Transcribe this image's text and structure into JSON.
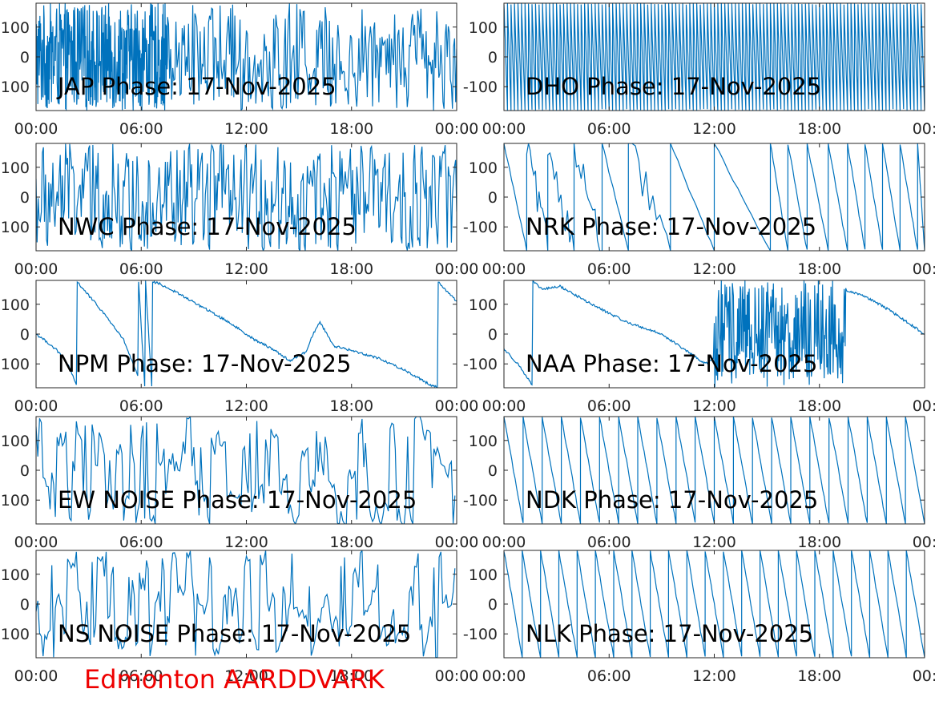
{
  "footer": {
    "text": "Edmonton AARDDVARK",
    "color": "#ee0000"
  },
  "style": {
    "line_color": "#0072bd",
    "axis_color": "#262626"
  },
  "chart_data": [
    {
      "type": "line",
      "title": "JAP Phase: 17-Nov-2025",
      "ylim": [
        -180,
        180
      ],
      "y_ticks": [
        100,
        0,
        -100
      ],
      "y_tick_labels": [
        "100",
        "0",
        "100"
      ],
      "x_tick_labels": [
        "00:00",
        "06:00",
        "12:00",
        "18:00",
        "00:00"
      ],
      "xlim_hours": [
        0,
        24
      ],
      "series": [
        {
          "pattern": "noise",
          "segments": [
            {
              "from_hour": 0,
              "to_hour": 7.5,
              "density": "saturated"
            },
            {
              "from_hour": 7.5,
              "to_hour": 24,
              "density": "dense"
            }
          ]
        }
      ]
    },
    {
      "type": "line",
      "title": "DHO Phase: 17-Nov-2025",
      "ylim": [
        -180,
        180
      ],
      "y_ticks": [
        100,
        0,
        -100
      ],
      "y_tick_labels": [
        "100",
        "0",
        "-100"
      ],
      "x_tick_labels": [
        "00:00",
        "06:00",
        "12:00",
        "18:00",
        "00:"
      ],
      "xlim_hours": [
        0,
        24
      ],
      "series": [
        {
          "pattern": "wrap",
          "wraps_per_day": 120,
          "direction": "down"
        }
      ]
    },
    {
      "type": "line",
      "title": "NWC Phase: 17-Nov-2025",
      "ylim": [
        -180,
        180
      ],
      "y_ticks": [
        100,
        0,
        -100
      ],
      "y_tick_labels": [
        "100",
        "0",
        "100"
      ],
      "x_tick_labels": [
        "00:00",
        "06:00",
        "12:00",
        "18:00",
        "00:00"
      ],
      "xlim_hours": [
        0,
        24
      ],
      "series": [
        {
          "pattern": "noise",
          "segments": [
            {
              "from_hour": 0,
              "to_hour": 24,
              "density": "dense"
            }
          ]
        }
      ]
    },
    {
      "type": "line",
      "title": "NRK Phase: 17-Nov-2025",
      "ylim": [
        -180,
        180
      ],
      "y_ticks": [
        100,
        0,
        -100
      ],
      "y_tick_labels": [
        "100",
        "0",
        "-100"
      ],
      "x_tick_labels": [
        "00:00",
        "06:00",
        "12:00",
        "18:00",
        "00:"
      ],
      "xlim_hours": [
        0,
        24
      ],
      "series": [
        {
          "pattern": "wrap",
          "wrap_hours": [
            0.0,
            1.3,
            2.5,
            4.0,
            5.6,
            7.1,
            9.5,
            12.0,
            15.2,
            16.2,
            17.3,
            18.5,
            19.6,
            20.6,
            21.6,
            22.6,
            23.6
          ],
          "direction": "down",
          "noisy_spans": [
            [
              1.3,
              4.2
            ],
            [
              6.4,
              7.3
            ]
          ]
        }
      ]
    },
    {
      "type": "line",
      "title": "NPM Phase: 17-Nov-2025",
      "ylim": [
        -180,
        180
      ],
      "y_ticks": [
        100,
        0,
        -100
      ],
      "y_tick_labels": [
        "100",
        "0",
        "100"
      ],
      "x_tick_labels": [
        "00:00",
        "06:00",
        "12:00",
        "18:00",
        "00:00"
      ],
      "xlim_hours": [
        0,
        24
      ],
      "series": [
        {
          "pattern": "points",
          "hours": [
            0,
            0.6,
            1.2,
            1.8,
            2.3,
            2.35,
            3.0,
            4.0,
            5.0,
            5.8,
            5.85,
            6.2,
            6.25,
            6.6,
            6.65,
            7.0,
            8.0,
            9.5,
            11.0,
            12.5,
            13.5,
            14.5,
            15.4,
            15.8,
            16.2,
            16.6,
            17.0,
            18.0,
            19.5,
            21.0,
            22.5,
            22.9,
            22.95,
            23.5,
            24
          ],
          "values": [
            0,
            -25,
            -55,
            -100,
            -170,
            175,
            130,
            60,
            -20,
            -140,
            175,
            -175,
            175,
            -175,
            175,
            170,
            140,
            90,
            40,
            -20,
            -50,
            -90,
            -60,
            0,
            40,
            0,
            -40,
            -55,
            -80,
            -120,
            -170,
            -178,
            175,
            140,
            110
          ]
        }
      ]
    },
    {
      "type": "line",
      "title": "NAA Phase: 17-Nov-2025",
      "ylim": [
        -180,
        180
      ],
      "y_ticks": [
        100,
        0,
        -100
      ],
      "y_tick_labels": [
        "100",
        "0",
        "-100"
      ],
      "x_tick_labels": [
        "00:00",
        "06:00",
        "12:00",
        "18:00",
        "00:"
      ],
      "xlim_hours": [
        0,
        24
      ],
      "series": [
        {
          "pattern": "points",
          "hours": [
            0,
            0.8,
            1.6,
            1.65,
            2.2,
            3.2,
            5.0,
            7.0,
            9.0,
            10.5,
            11.5,
            12.0,
            12.1,
            17.6,
            17.7,
            19.5,
            19.6,
            20.5,
            22.0,
            24
          ],
          "values": [
            -50,
            -100,
            -170,
            175,
            150,
            160,
            100,
            40,
            0,
            -60,
            -100,
            -80,
            0,
            -120,
            150,
            150,
            145,
            130,
            80,
            0
          ],
          "noisy_spans": [
            [
              12.0,
              17.8
            ],
            [
              19.0,
              19.5
            ]
          ]
        }
      ]
    },
    {
      "type": "line",
      "title": "EW NOISE Phase: 17-Nov-2025",
      "ylim": [
        -180,
        180
      ],
      "y_ticks": [
        100,
        0,
        -100
      ],
      "y_tick_labels": [
        "100",
        "0",
        "100"
      ],
      "x_tick_labels": [
        "00:00",
        "06:00",
        "12:00",
        "18:00",
        "00:00"
      ],
      "xlim_hours": [
        0,
        24
      ],
      "series": [
        {
          "pattern": "noise",
          "segments": [
            {
              "from_hour": 0,
              "to_hour": 24,
              "density": "medium"
            }
          ]
        }
      ]
    },
    {
      "type": "line",
      "title": "NDK Phase: 17-Nov-2025",
      "ylim": [
        -180,
        180
      ],
      "y_ticks": [
        100,
        0,
        -100
      ],
      "y_tick_labels": [
        "100",
        "0",
        "-100"
      ],
      "x_tick_labels": [
        "00:00",
        "06:00",
        "12:00",
        "18:00",
        "00:"
      ],
      "xlim_hours": [
        0,
        24
      ],
      "series": [
        {
          "pattern": "wrap",
          "wraps_per_day": 22,
          "direction": "down"
        }
      ]
    },
    {
      "type": "line",
      "title": "NS NOISE Phase: 17-Nov-2025",
      "ylim": [
        -180,
        180
      ],
      "y_ticks": [
        100,
        0,
        -100
      ],
      "y_tick_labels": [
        "100",
        "0",
        "100"
      ],
      "x_tick_labels": [
        "00:00",
        "06:00",
        "12:00",
        "18:00",
        "00:00"
      ],
      "xlim_hours": [
        0,
        24
      ],
      "series": [
        {
          "pattern": "noise",
          "segments": [
            {
              "from_hour": 0,
              "to_hour": 24,
              "density": "medium"
            }
          ]
        }
      ]
    },
    {
      "type": "line",
      "title": "NLK Phase: 17-Nov-2025",
      "ylim": [
        -180,
        180
      ],
      "y_ticks": [
        100,
        0,
        -100
      ],
      "y_tick_labels": [
        "100",
        "0",
        "-100"
      ],
      "x_tick_labels": [
        "00:00",
        "06:00",
        "12:00",
        "18:00",
        "00:"
      ],
      "xlim_hours": [
        0,
        24
      ],
      "series": [
        {
          "pattern": "wrap",
          "wraps_per_day": 23,
          "direction": "down"
        }
      ]
    }
  ]
}
